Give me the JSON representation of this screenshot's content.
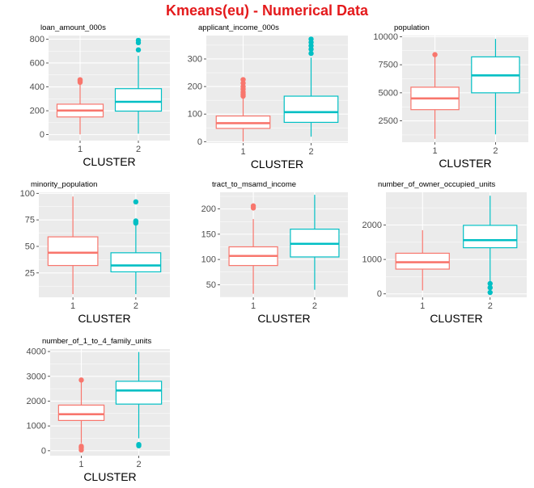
{
  "title": "Kmeans(eu) - Numerical Data",
  "colors": {
    "cluster_1": "#F8766D",
    "cluster_2": "#00BFC4",
    "panel_bg": "#EBEBEB",
    "grid": "#FFFFFF",
    "title": "#E41A1C"
  },
  "chart_data": [
    {
      "type": "box",
      "title": "loan_amount_000s",
      "xlabel": "CLUSTER",
      "ylabel": "",
      "categories": [
        "1",
        "2"
      ],
      "yticks": [
        0,
        200,
        400,
        600,
        800
      ],
      "ylim": [
        -50,
        830
      ],
      "boxes": [
        {
          "cluster": "1",
          "q1": 148,
          "median": 202,
          "q3": 255,
          "whisker_low": 2,
          "whisker_high": 418,
          "outliers": [
            438,
            448,
            455,
            460
          ]
        },
        {
          "cluster": "2",
          "q1": 197,
          "median": 275,
          "q3": 385,
          "whisker_low": 8,
          "whisker_high": 660,
          "outliers": [
            710,
            770,
            790
          ]
        }
      ]
    },
    {
      "type": "box",
      "title": "applicant_income_000s",
      "xlabel": "CLUSTER",
      "ylabel": "",
      "categories": [
        "1",
        "2"
      ],
      "yticks": [
        0,
        100,
        200,
        300
      ],
      "ylim": [
        -5,
        385
      ],
      "boxes": [
        {
          "cluster": "1",
          "q1": 48,
          "median": 67,
          "q3": 93,
          "whisker_low": 0,
          "whisker_high": 158,
          "outliers": [
            165,
            172,
            180,
            190,
            200,
            212,
            225
          ]
        },
        {
          "cluster": "2",
          "q1": 70,
          "median": 107,
          "q3": 165,
          "whisker_low": 18,
          "whisker_high": 305,
          "outliers": [
            320,
            335,
            348,
            360,
            372
          ]
        }
      ]
    },
    {
      "type": "box",
      "title": "population",
      "xlabel": "CLUSTER",
      "ylabel": "",
      "categories": [
        "1",
        "2"
      ],
      "yticks": [
        2500,
        5000,
        7500,
        10000
      ],
      "ylim": [
        600,
        10100
      ],
      "boxes": [
        {
          "cluster": "1",
          "q1": 3500,
          "median": 4500,
          "q3": 5500,
          "whisker_low": 900,
          "whisker_high": 8200,
          "outliers": [
            8400
          ]
        },
        {
          "cluster": "2",
          "q1": 5000,
          "median": 6550,
          "q3": 8200,
          "whisker_low": 1300,
          "whisker_high": 9800,
          "outliers": []
        }
      ]
    },
    {
      "type": "box",
      "title": "minority_population",
      "xlabel": "CLUSTER",
      "ylabel": "",
      "categories": [
        "1",
        "2"
      ],
      "yticks": [
        25,
        50,
        75,
        100
      ],
      "ylim": [
        2,
        101
      ],
      "boxes": [
        {
          "cluster": "1",
          "q1": 32,
          "median": 44,
          "q3": 59,
          "whisker_low": 5,
          "whisker_high": 97,
          "outliers": []
        },
        {
          "cluster": "2",
          "q1": 26,
          "median": 32,
          "q3": 44,
          "whisker_low": 5,
          "whisker_high": 70,
          "outliers": [
            72,
            73,
            74,
            92
          ]
        }
      ]
    },
    {
      "type": "box",
      "title": "tract_to_msamd_income",
      "xlabel": "CLUSTER",
      "ylabel": "",
      "categories": [
        "1",
        "2"
      ],
      "yticks": [
        50,
        100,
        150,
        200
      ],
      "ylim": [
        25,
        233
      ],
      "boxes": [
        {
          "cluster": "1",
          "q1": 88,
          "median": 107,
          "q3": 125,
          "whisker_low": 32,
          "whisker_high": 180,
          "outliers": [
            202,
            206
          ]
        },
        {
          "cluster": "2",
          "q1": 105,
          "median": 131,
          "q3": 160,
          "whisker_low": 40,
          "whisker_high": 228,
          "outliers": []
        }
      ]
    },
    {
      "type": "box",
      "title": "number_of_owner_occupied_units",
      "xlabel": "CLUSTER",
      "ylabel": "",
      "categories": [
        "1",
        "2"
      ],
      "yticks": [
        0,
        1000,
        2000
      ],
      "ylim": [
        -100,
        2950
      ],
      "boxes": [
        {
          "cluster": "1",
          "q1": 720,
          "median": 920,
          "q3": 1180,
          "whisker_low": 100,
          "whisker_high": 1850,
          "outliers": []
        },
        {
          "cluster": "2",
          "q1": 1340,
          "median": 1560,
          "q3": 1990,
          "whisker_low": 350,
          "whisker_high": 2850,
          "outliers": [
            40,
            180,
            300
          ]
        }
      ]
    },
    {
      "type": "box",
      "title": "number_of_1_to_4_family_units",
      "xlabel": "CLUSTER",
      "ylabel": "",
      "categories": [
        "1",
        "2"
      ],
      "yticks": [
        0,
        1000,
        2000,
        3000,
        4000
      ],
      "ylim": [
        -200,
        4100
      ],
      "boxes": [
        {
          "cluster": "1",
          "q1": 1220,
          "median": 1470,
          "q3": 1840,
          "whisker_low": 300,
          "whisker_high": 2780,
          "outliers": [
            30,
            120,
            180,
            2850
          ]
        },
        {
          "cluster": "2",
          "q1": 1880,
          "median": 2430,
          "q3": 2800,
          "whisker_low": 500,
          "whisker_high": 3980,
          "outliers": [
            200,
            250
          ]
        }
      ]
    }
  ]
}
